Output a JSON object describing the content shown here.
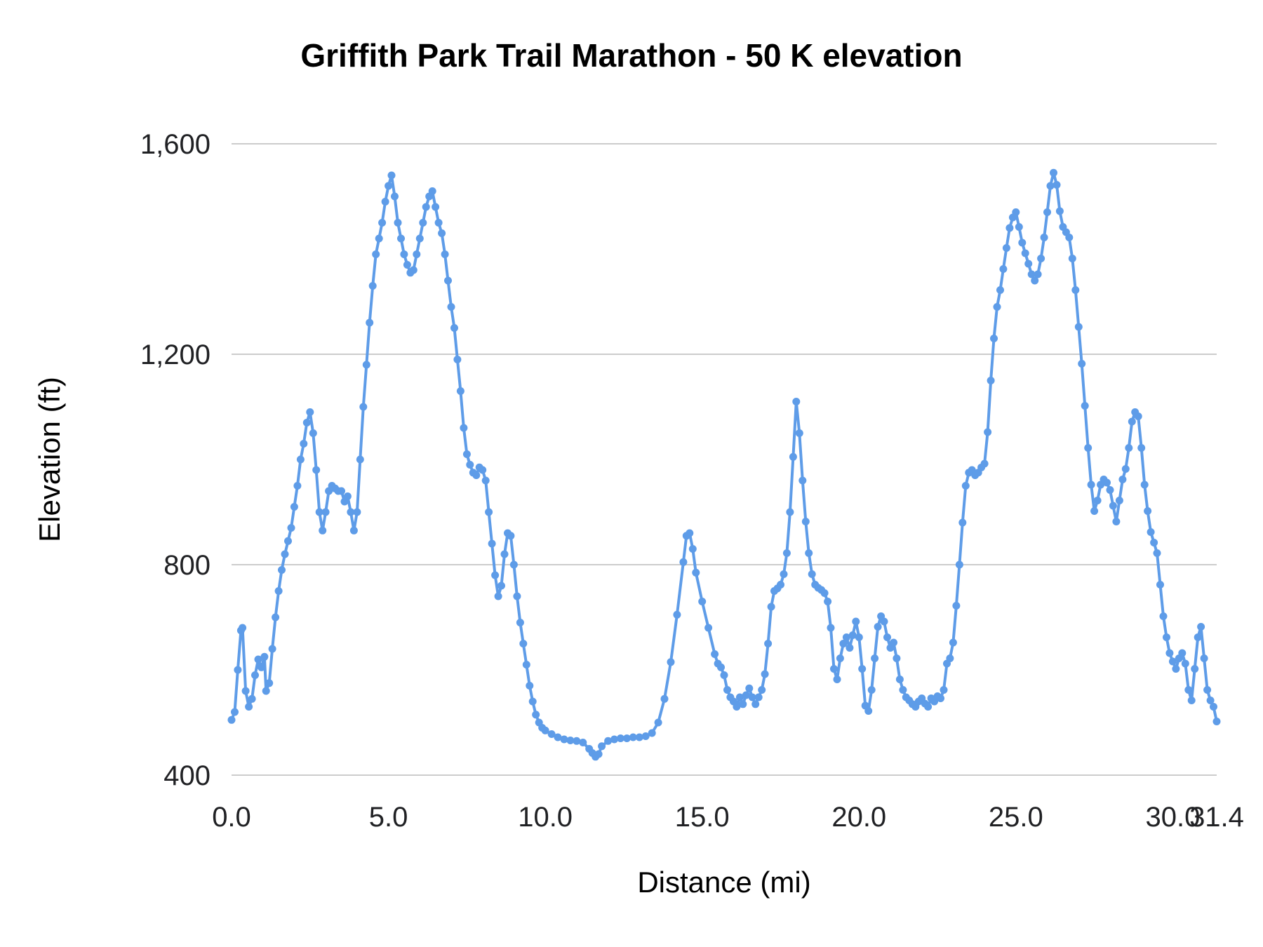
{
  "title": "Griffith Park Trail Marathon - 50 K elevation",
  "chart_data": {
    "type": "line",
    "title": "Griffith Park Trail Marathon - 50 K elevation",
    "xlabel": "Distance (mi)",
    "ylabel": "Elevation (ft)",
    "xlim": [
      0,
      31.4
    ],
    "ylim": [
      400,
      1600
    ],
    "x_ticks": [
      0,
      5,
      10,
      15,
      20,
      25,
      30,
      31.4
    ],
    "x_tick_labels": [
      "0.0",
      "5.0",
      "10.0",
      "15.0",
      "20.0",
      "25.0",
      "30.0",
      "31.4"
    ],
    "y_ticks": [
      400,
      800,
      1200,
      1600
    ],
    "y_tick_labels": [
      "400",
      "800",
      "1,200",
      "1,600"
    ],
    "grid": "horizontal",
    "legend": "none",
    "line_color": "#5e9ce8",
    "grid_color": "#cccccc",
    "text_color": "#202124",
    "points": [
      [
        0.0,
        505
      ],
      [
        0.1,
        520
      ],
      [
        0.2,
        600
      ],
      [
        0.3,
        675
      ],
      [
        0.35,
        680
      ],
      [
        0.45,
        560
      ],
      [
        0.55,
        530
      ],
      [
        0.65,
        545
      ],
      [
        0.75,
        590
      ],
      [
        0.85,
        620
      ],
      [
        0.95,
        605
      ],
      [
        1.05,
        625
      ],
      [
        1.1,
        560
      ],
      [
        1.2,
        575
      ],
      [
        1.3,
        640
      ],
      [
        1.4,
        700
      ],
      [
        1.5,
        750
      ],
      [
        1.6,
        790
      ],
      [
        1.7,
        820
      ],
      [
        1.8,
        845
      ],
      [
        1.9,
        870
      ],
      [
        2.0,
        910
      ],
      [
        2.1,
        950
      ],
      [
        2.2,
        1000
      ],
      [
        2.3,
        1030
      ],
      [
        2.4,
        1070
      ],
      [
        2.5,
        1090
      ],
      [
        2.6,
        1050
      ],
      [
        2.7,
        980
      ],
      [
        2.8,
        900
      ],
      [
        2.9,
        865
      ],
      [
        3.0,
        900
      ],
      [
        3.1,
        940
      ],
      [
        3.2,
        950
      ],
      [
        3.3,
        945
      ],
      [
        3.4,
        940
      ],
      [
        3.5,
        940
      ],
      [
        3.6,
        920
      ],
      [
        3.7,
        930
      ],
      [
        3.8,
        900
      ],
      [
        3.9,
        865
      ],
      [
        4.0,
        900
      ],
      [
        4.1,
        1000
      ],
      [
        4.2,
        1100
      ],
      [
        4.3,
        1180
      ],
      [
        4.4,
        1260
      ],
      [
        4.5,
        1330
      ],
      [
        4.6,
        1390
      ],
      [
        4.7,
        1420
      ],
      [
        4.8,
        1450
      ],
      [
        4.9,
        1490
      ],
      [
        5.0,
        1520
      ],
      [
        5.1,
        1540
      ],
      [
        5.2,
        1500
      ],
      [
        5.3,
        1450
      ],
      [
        5.4,
        1420
      ],
      [
        5.5,
        1390
      ],
      [
        5.6,
        1370
      ],
      [
        5.7,
        1355
      ],
      [
        5.8,
        1360
      ],
      [
        5.9,
        1390
      ],
      [
        6.0,
        1420
      ],
      [
        6.1,
        1450
      ],
      [
        6.2,
        1480
      ],
      [
        6.3,
        1500
      ],
      [
        6.4,
        1510
      ],
      [
        6.5,
        1480
      ],
      [
        6.6,
        1450
      ],
      [
        6.7,
        1430
      ],
      [
        6.8,
        1390
      ],
      [
        6.9,
        1340
      ],
      [
        7.0,
        1290
      ],
      [
        7.1,
        1250
      ],
      [
        7.2,
        1190
      ],
      [
        7.3,
        1130
      ],
      [
        7.4,
        1060
      ],
      [
        7.5,
        1010
      ],
      [
        7.6,
        990
      ],
      [
        7.7,
        975
      ],
      [
        7.8,
        970
      ],
      [
        7.9,
        985
      ],
      [
        8.0,
        980
      ],
      [
        8.1,
        960
      ],
      [
        8.2,
        900
      ],
      [
        8.3,
        840
      ],
      [
        8.4,
        780
      ],
      [
        8.5,
        740
      ],
      [
        8.6,
        760
      ],
      [
        8.7,
        820
      ],
      [
        8.8,
        860
      ],
      [
        8.9,
        855
      ],
      [
        9.0,
        800
      ],
      [
        9.1,
        740
      ],
      [
        9.2,
        690
      ],
      [
        9.3,
        650
      ],
      [
        9.4,
        610
      ],
      [
        9.5,
        570
      ],
      [
        9.6,
        540
      ],
      [
        9.7,
        515
      ],
      [
        9.8,
        500
      ],
      [
        9.9,
        490
      ],
      [
        10.0,
        485
      ],
      [
        10.2,
        478
      ],
      [
        10.4,
        472
      ],
      [
        10.6,
        468
      ],
      [
        10.8,
        466
      ],
      [
        11.0,
        465
      ],
      [
        11.2,
        462
      ],
      [
        11.4,
        450
      ],
      [
        11.5,
        442
      ],
      [
        11.6,
        435
      ],
      [
        11.7,
        440
      ],
      [
        11.8,
        455
      ],
      [
        12.0,
        465
      ],
      [
        12.2,
        468
      ],
      [
        12.4,
        470
      ],
      [
        12.6,
        470
      ],
      [
        12.8,
        472
      ],
      [
        13.0,
        472
      ],
      [
        13.2,
        474
      ],
      [
        13.4,
        480
      ],
      [
        13.6,
        500
      ],
      [
        13.8,
        545
      ],
      [
        14.0,
        615
      ],
      [
        14.2,
        705
      ],
      [
        14.4,
        805
      ],
      [
        14.5,
        855
      ],
      [
        14.6,
        860
      ],
      [
        14.7,
        830
      ],
      [
        14.8,
        785
      ],
      [
        15.0,
        730
      ],
      [
        15.2,
        680
      ],
      [
        15.4,
        630
      ],
      [
        15.5,
        612
      ],
      [
        15.6,
        605
      ],
      [
        15.7,
        590
      ],
      [
        15.8,
        562
      ],
      [
        15.9,
        548
      ],
      [
        16.0,
        540
      ],
      [
        16.1,
        530
      ],
      [
        16.2,
        548
      ],
      [
        16.3,
        535
      ],
      [
        16.4,
        552
      ],
      [
        16.5,
        565
      ],
      [
        16.6,
        548
      ],
      [
        16.7,
        535
      ],
      [
        16.8,
        548
      ],
      [
        16.9,
        562
      ],
      [
        17.0,
        592
      ],
      [
        17.1,
        650
      ],
      [
        17.2,
        720
      ],
      [
        17.3,
        750
      ],
      [
        17.4,
        755
      ],
      [
        17.5,
        762
      ],
      [
        17.6,
        782
      ],
      [
        17.7,
        822
      ],
      [
        17.8,
        900
      ],
      [
        17.9,
        1005
      ],
      [
        18.0,
        1110
      ],
      [
        18.1,
        1050
      ],
      [
        18.2,
        960
      ],
      [
        18.3,
        882
      ],
      [
        18.4,
        822
      ],
      [
        18.5,
        782
      ],
      [
        18.6,
        762
      ],
      [
        18.7,
        756
      ],
      [
        18.8,
        752
      ],
      [
        18.9,
        746
      ],
      [
        19.0,
        730
      ],
      [
        19.1,
        680
      ],
      [
        19.2,
        602
      ],
      [
        19.3,
        582
      ],
      [
        19.4,
        622
      ],
      [
        19.5,
        650
      ],
      [
        19.6,
        662
      ],
      [
        19.7,
        642
      ],
      [
        19.8,
        666
      ],
      [
        19.9,
        692
      ],
      [
        20.0,
        662
      ],
      [
        20.1,
        602
      ],
      [
        20.2,
        532
      ],
      [
        20.3,
        522
      ],
      [
        20.4,
        562
      ],
      [
        20.5,
        622
      ],
      [
        20.6,
        682
      ],
      [
        20.7,
        702
      ],
      [
        20.8,
        692
      ],
      [
        20.9,
        662
      ],
      [
        21.0,
        642
      ],
      [
        21.1,
        652
      ],
      [
        21.2,
        622
      ],
      [
        21.3,
        582
      ],
      [
        21.4,
        562
      ],
      [
        21.5,
        548
      ],
      [
        21.6,
        542
      ],
      [
        21.7,
        535
      ],
      [
        21.8,
        530
      ],
      [
        21.9,
        540
      ],
      [
        22.0,
        546
      ],
      [
        22.1,
        536
      ],
      [
        22.2,
        530
      ],
      [
        22.3,
        546
      ],
      [
        22.4,
        540
      ],
      [
        22.5,
        550
      ],
      [
        22.6,
        546
      ],
      [
        22.7,
        562
      ],
      [
        22.8,
        612
      ],
      [
        22.9,
        622
      ],
      [
        23.0,
        652
      ],
      [
        23.1,
        722
      ],
      [
        23.2,
        800
      ],
      [
        23.3,
        880
      ],
      [
        23.4,
        950
      ],
      [
        23.5,
        975
      ],
      [
        23.6,
        980
      ],
      [
        23.7,
        970
      ],
      [
        23.8,
        975
      ],
      [
        23.9,
        985
      ],
      [
        24.0,
        992
      ],
      [
        24.1,
        1052
      ],
      [
        24.2,
        1150
      ],
      [
        24.3,
        1230
      ],
      [
        24.4,
        1290
      ],
      [
        24.5,
        1322
      ],
      [
        24.6,
        1362
      ],
      [
        24.7,
        1402
      ],
      [
        24.8,
        1440
      ],
      [
        24.9,
        1460
      ],
      [
        25.0,
        1470
      ],
      [
        25.1,
        1442
      ],
      [
        25.2,
        1412
      ],
      [
        25.3,
        1392
      ],
      [
        25.4,
        1372
      ],
      [
        25.5,
        1352
      ],
      [
        25.6,
        1340
      ],
      [
        25.7,
        1352
      ],
      [
        25.8,
        1382
      ],
      [
        25.9,
        1422
      ],
      [
        26.0,
        1470
      ],
      [
        26.1,
        1520
      ],
      [
        26.2,
        1545
      ],
      [
        26.3,
        1522
      ],
      [
        26.4,
        1472
      ],
      [
        26.5,
        1442
      ],
      [
        26.6,
        1432
      ],
      [
        26.7,
        1422
      ],
      [
        26.8,
        1382
      ],
      [
        26.9,
        1322
      ],
      [
        27.0,
        1252
      ],
      [
        27.1,
        1182
      ],
      [
        27.2,
        1102
      ],
      [
        27.3,
        1022
      ],
      [
        27.4,
        952
      ],
      [
        27.5,
        902
      ],
      [
        27.6,
        922
      ],
      [
        27.7,
        952
      ],
      [
        27.8,
        962
      ],
      [
        27.9,
        956
      ],
      [
        28.0,
        942
      ],
      [
        28.1,
        912
      ],
      [
        28.2,
        882
      ],
      [
        28.3,
        922
      ],
      [
        28.4,
        962
      ],
      [
        28.5,
        982
      ],
      [
        28.6,
        1022
      ],
      [
        28.7,
        1072
      ],
      [
        28.8,
        1090
      ],
      [
        28.9,
        1082
      ],
      [
        29.0,
        1022
      ],
      [
        29.1,
        952
      ],
      [
        29.2,
        902
      ],
      [
        29.3,
        862
      ],
      [
        29.4,
        842
      ],
      [
        29.5,
        822
      ],
      [
        29.6,
        762
      ],
      [
        29.7,
        702
      ],
      [
        29.8,
        662
      ],
      [
        29.9,
        632
      ],
      [
        30.0,
        616
      ],
      [
        30.1,
        602
      ],
      [
        30.2,
        622
      ],
      [
        30.3,
        632
      ],
      [
        30.4,
        612
      ],
      [
        30.5,
        562
      ],
      [
        30.6,
        542
      ],
      [
        30.7,
        602
      ],
      [
        30.8,
        662
      ],
      [
        30.9,
        682
      ],
      [
        31.0,
        622
      ],
      [
        31.1,
        562
      ],
      [
        31.2,
        542
      ],
      [
        31.3,
        530
      ],
      [
        31.4,
        502
      ]
    ]
  }
}
